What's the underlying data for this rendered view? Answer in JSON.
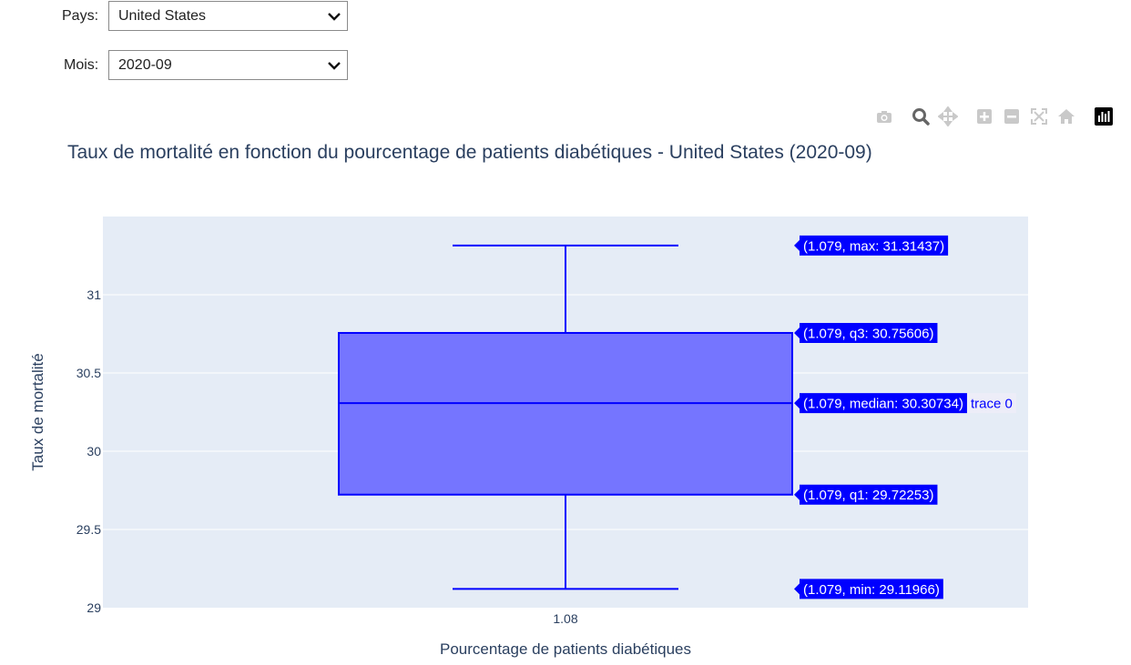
{
  "controls": {
    "country": {
      "label": "Pays:",
      "value": "United States"
    },
    "month": {
      "label": "Mois:",
      "value": "2020-09"
    }
  },
  "modebar": {
    "icons": [
      "camera-icon",
      "zoom-icon",
      "pan-icon",
      "zoom-in-icon",
      "zoom-out-icon",
      "autoscale-icon",
      "reset-axes-icon",
      "plotly-logo-icon"
    ]
  },
  "chart_data": {
    "type": "box",
    "title": "Taux de mortalité en fonction du pourcentage de patients diabétiques - United States (2020-09)",
    "xlabel": "Pourcentage de patients diabétiques",
    "ylabel": "Taux de mortalité",
    "x_tick_labels": [
      "1.08"
    ],
    "y_ticks": [
      29,
      29.5,
      30,
      30.5,
      31
    ],
    "y_tick_labels": [
      "29",
      "29.5",
      "30",
      "30.5",
      "31"
    ],
    "ylim": [
      29,
      31.5
    ],
    "grid": true,
    "box": {
      "x": 1.079,
      "min": 29.11966,
      "q1": 29.72253,
      "median": 30.30734,
      "q3": 30.75606,
      "max": 31.31437
    },
    "hover_labels": {
      "max": "(1.079, max: 31.31437)",
      "q3": "(1.079, q3: 30.75606)",
      "median": "(1.079, median: 30.30734)",
      "q1": "(1.079, q1: 29.72253)",
      "min": "(1.079, min: 29.11966)"
    },
    "trace_label": "trace 0",
    "colors": {
      "line": "#0000ff",
      "fill": "#7575ff",
      "plot_bg": "#e5ecf6",
      "hover_bg": "#0000ff"
    }
  }
}
